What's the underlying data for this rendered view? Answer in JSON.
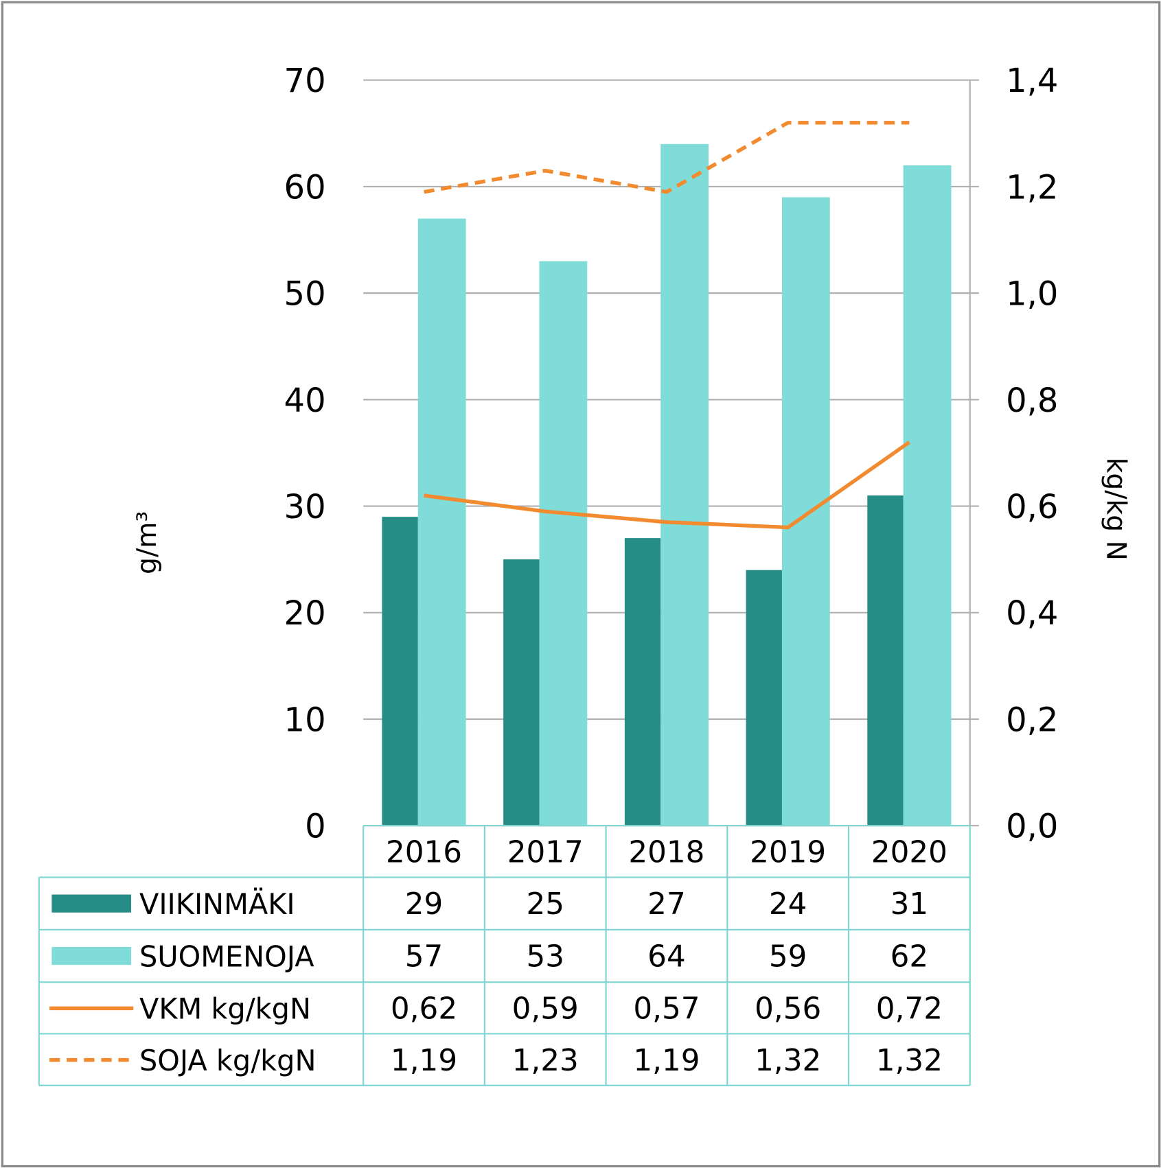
{
  "chart_data": {
    "type": "bar",
    "categories": [
      "2016",
      "2017",
      "2018",
      "2019",
      "2020"
    ],
    "series": [
      {
        "name": "VIIKINMÄKI",
        "kind": "bar",
        "axis": "left",
        "color": "#268c86",
        "values": [
          29,
          25,
          27,
          24,
          31
        ],
        "labels": [
          "29",
          "25",
          "27",
          "24",
          "31"
        ]
      },
      {
        "name": "SUOMENOJA",
        "kind": "bar",
        "axis": "left",
        "color": "#80dcd8",
        "values": [
          57,
          53,
          64,
          59,
          62
        ],
        "labels": [
          "57",
          "53",
          "64",
          "59",
          "62"
        ]
      },
      {
        "name": "VKM kg/kgN",
        "kind": "line",
        "style": "solid",
        "axis": "right",
        "color": "#f28a30",
        "values": [
          0.62,
          0.59,
          0.57,
          0.56,
          0.72
        ],
        "labels": [
          "0,62",
          "0,59",
          "0,57",
          "0,56",
          "0,72"
        ]
      },
      {
        "name": "SOJA kg/kgN",
        "kind": "line",
        "style": "dashed",
        "axis": "right",
        "color": "#f28a30",
        "values": [
          1.19,
          1.23,
          1.19,
          1.32,
          1.32
        ],
        "labels": [
          "1,19",
          "1,23",
          "1,19",
          "1,32",
          "1,32"
        ]
      }
    ],
    "ylabel": "g/m³",
    "y2label": "kg/kg N",
    "ylim": [
      0,
      70
    ],
    "y2lim": [
      0,
      1.4
    ],
    "yticks": [
      "0",
      "10",
      "20",
      "30",
      "40",
      "50",
      "60",
      "70"
    ],
    "y2ticks": [
      "0,0",
      "0,2",
      "0,4",
      "0,6",
      "0,8",
      "1,0",
      "1,2",
      "1,4"
    ],
    "grid": true,
    "legend": "data-table-bottom",
    "grid_color": "#b0b0b0",
    "table_border_color": "#7fd6d2"
  }
}
